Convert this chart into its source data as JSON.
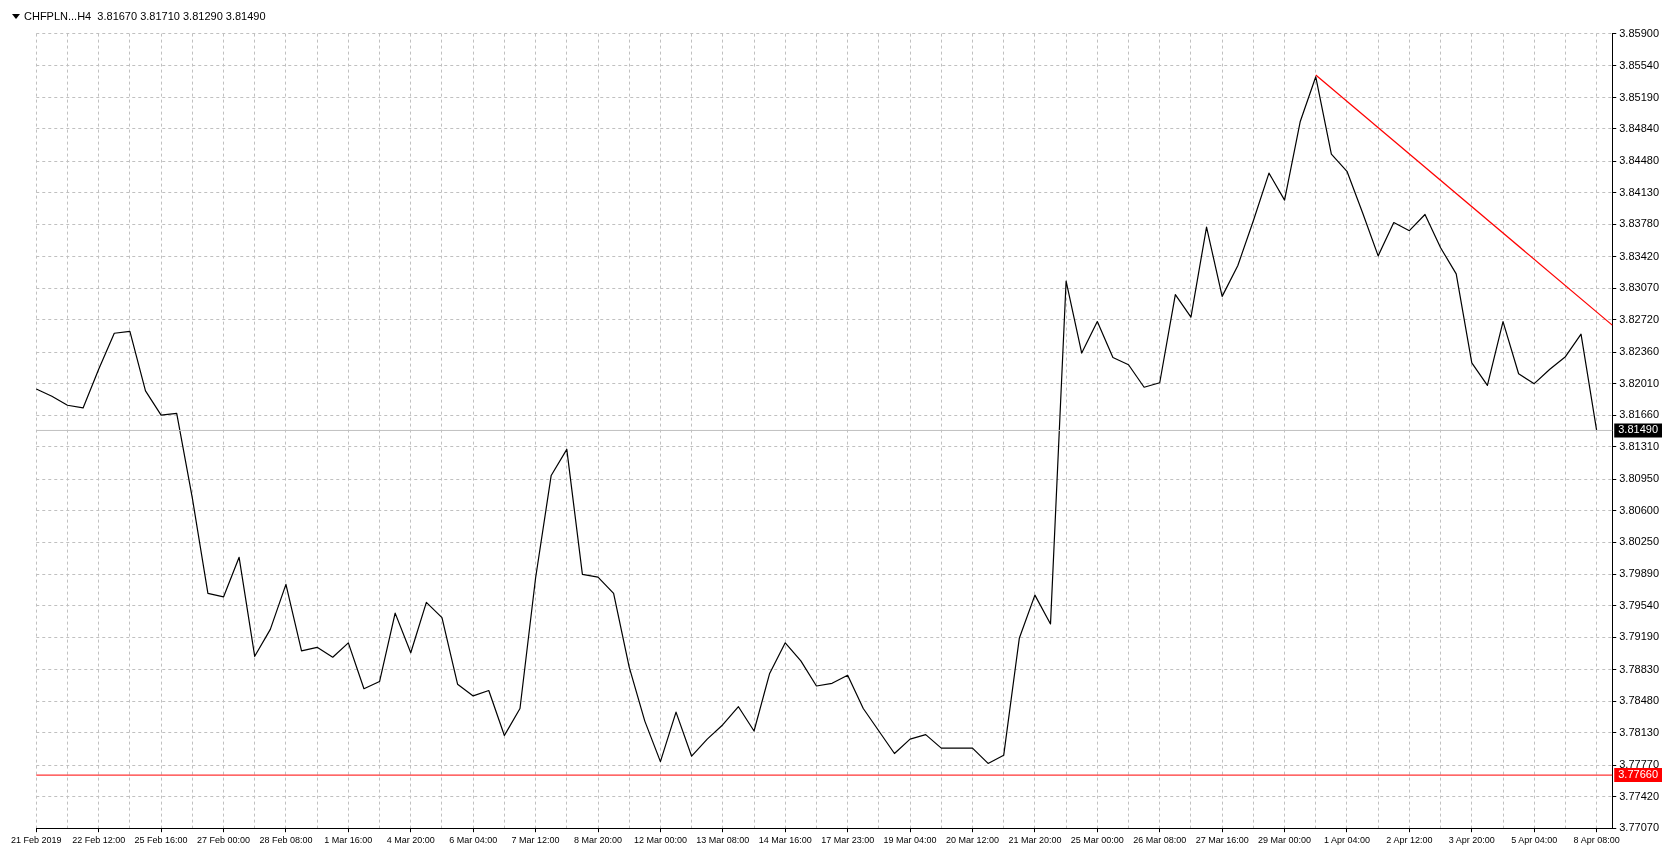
{
  "chart_data": {
    "type": "line",
    "title": "CHFPLN...H4  3.81670 3.81710 3.81290 3.81490",
    "categories": [
      "21 Feb 2019",
      null,
      null,
      null,
      "22 Feb 12:00",
      null,
      null,
      null,
      "25 Feb 16:00",
      null,
      null,
      null,
      "27 Feb 00:00",
      null,
      null,
      null,
      "28 Feb 08:00",
      null,
      null,
      null,
      "1 Mar 16:00",
      null,
      null,
      null,
      "4 Mar 20:00",
      null,
      null,
      null,
      "6 Mar 04:00",
      null,
      null,
      null,
      "7 Mar 12:00",
      null,
      null,
      null,
      "8 Mar 20:00",
      null,
      null,
      null,
      "12 Mar 00:00",
      null,
      null,
      null,
      "13 Mar 08:00",
      null,
      null,
      null,
      "14 Mar 16:00",
      null,
      null,
      null,
      "17 Mar 23:00",
      null,
      null,
      null,
      "19 Mar 04:00",
      null,
      null,
      null,
      "20 Mar 12:00",
      null,
      null,
      null,
      "21 Mar 20:00",
      null,
      null,
      null,
      "25 Mar 00:00",
      null,
      null,
      null,
      "26 Mar 08:00",
      null,
      null,
      null,
      "27 Mar 16:00",
      null,
      null,
      null,
      "29 Mar 00:00",
      null,
      null,
      null,
      "1 Apr 04:00",
      null,
      null,
      null,
      "2 Apr 12:00",
      null,
      null,
      null,
      "3 Apr 20:00",
      null,
      null,
      null,
      "5 Apr 04:00",
      null,
      null,
      null,
      "8 Apr 08:00",
      null
    ],
    "series": [
      {
        "color": "#000000",
        "values": [
          3.8195,
          3.8187,
          3.8177,
          3.8174,
          3.8217,
          3.8257,
          3.8259,
          3.8193,
          3.8166,
          3.8168,
          3.8074,
          3.7968,
          3.7964,
          3.8008,
          3.7898,
          3.7928,
          3.7978,
          3.7904,
          3.7908,
          3.7897,
          3.7913,
          3.7862,
          3.787,
          3.7946,
          3.7902,
          3.7958,
          3.7941,
          3.7867,
          3.7854,
          3.786,
          3.781,
          3.784,
          3.7985,
          3.8099,
          3.8128,
          3.7989,
          3.7986,
          3.7968,
          3.7886,
          3.7826,
          3.7781,
          3.7836,
          3.7787,
          3.7806,
          3.7822,
          3.7842,
          3.7815,
          3.7879,
          3.7913,
          3.7893,
          3.7865,
          3.7868,
          3.7877,
          3.784,
          3.7815,
          3.779,
          3.7806,
          3.7811,
          3.7796,
          3.7796,
          3.7796,
          3.7779,
          3.7788,
          3.7918,
          3.7966,
          3.7934,
          3.8315,
          3.8235,
          3.827,
          3.823,
          3.8222,
          3.8197,
          3.8202,
          3.83,
          3.8275,
          3.8375,
          3.8298,
          3.8332,
          3.8382,
          3.8435,
          3.8405,
          3.8492,
          3.8542,
          3.8456,
          3.8437,
          3.8391,
          3.8343,
          3.838,
          3.8371,
          3.8389,
          3.8352,
          3.8323,
          3.8224,
          3.8199,
          3.827,
          3.8212,
          3.8201,
          3.8217,
          3.8231,
          3.8256,
          3.8149,
          null
        ]
      },
      {
        "type": "line",
        "color": "#ff0000",
        "values": [
          null,
          null,
          null,
          null,
          null,
          null,
          null,
          null,
          null,
          null,
          null,
          null,
          null,
          null,
          null,
          null,
          null,
          null,
          null,
          null,
          null,
          null,
          null,
          null,
          null,
          null,
          null,
          null,
          null,
          null,
          null,
          null,
          null,
          null,
          null,
          null,
          null,
          null,
          null,
          null,
          null,
          null,
          null,
          null,
          null,
          null,
          null,
          null,
          null,
          null,
          null,
          null,
          null,
          null,
          null,
          null,
          null,
          null,
          null,
          null,
          null,
          null,
          null,
          null,
          null,
          null,
          null,
          null,
          null,
          null,
          null,
          null,
          null,
          null,
          null,
          null,
          null,
          null,
          null,
          null,
          null,
          null,
          3.8544,
          null,
          null,
          null,
          null,
          null,
          null,
          null,
          null,
          null,
          null,
          null,
          null,
          null,
          null,
          null,
          null,
          null,
          null,
          3.8266
        ]
      }
    ],
    "ylim": [
      3.7707,
      3.859
    ],
    "yticks": [
      {
        "value": 3.859,
        "label": "3.85900"
      },
      {
        "value": 3.8554,
        "label": "3.85540"
      },
      {
        "value": 3.8519,
        "label": "3.85190"
      },
      {
        "value": 3.8484,
        "label": "3.84840"
      },
      {
        "value": 3.8448,
        "label": "3.84480"
      },
      {
        "value": 3.8413,
        "label": "3.84130"
      },
      {
        "value": 3.8378,
        "label": "3.83780"
      },
      {
        "value": 3.8342,
        "label": "3.83420"
      },
      {
        "value": 3.8307,
        "label": "3.83070"
      },
      {
        "value": 3.8272,
        "label": "3.82720"
      },
      {
        "value": 3.8236,
        "label": "3.82360"
      },
      {
        "value": 3.8201,
        "label": "3.82010"
      },
      {
        "value": 3.8166,
        "label": "3.81660"
      },
      {
        "value": 3.8131,
        "label": "3.81310"
      },
      {
        "value": 3.8095,
        "label": "3.80950"
      },
      {
        "value": 3.806,
        "label": "3.80600"
      },
      {
        "value": 3.8025,
        "label": "3.80250"
      },
      {
        "value": 3.7989,
        "label": "3.79890"
      },
      {
        "value": 3.7954,
        "label": "3.79540"
      },
      {
        "value": 3.7919,
        "label": "3.79190"
      },
      {
        "value": 3.7883,
        "label": "3.78830"
      },
      {
        "value": 3.7848,
        "label": "3.78480"
      },
      {
        "value": 3.7813,
        "label": "3.78130"
      },
      {
        "value": 3.7777,
        "label": "3.77770"
      },
      {
        "value": 3.7742,
        "label": "3.77420"
      },
      {
        "value": 3.7707,
        "label": "3.77070"
      }
    ],
    "ref_lines": [
      {
        "axis": "y",
        "value": 3.8149,
        "label": "3.81490",
        "color": "#c0c0c0"
      },
      {
        "axis": "y",
        "value": 3.7766,
        "label": "3.77660",
        "color": "#ff0000"
      }
    ],
    "grid": true,
    "marker": "none",
    "line_style": "solid"
  }
}
